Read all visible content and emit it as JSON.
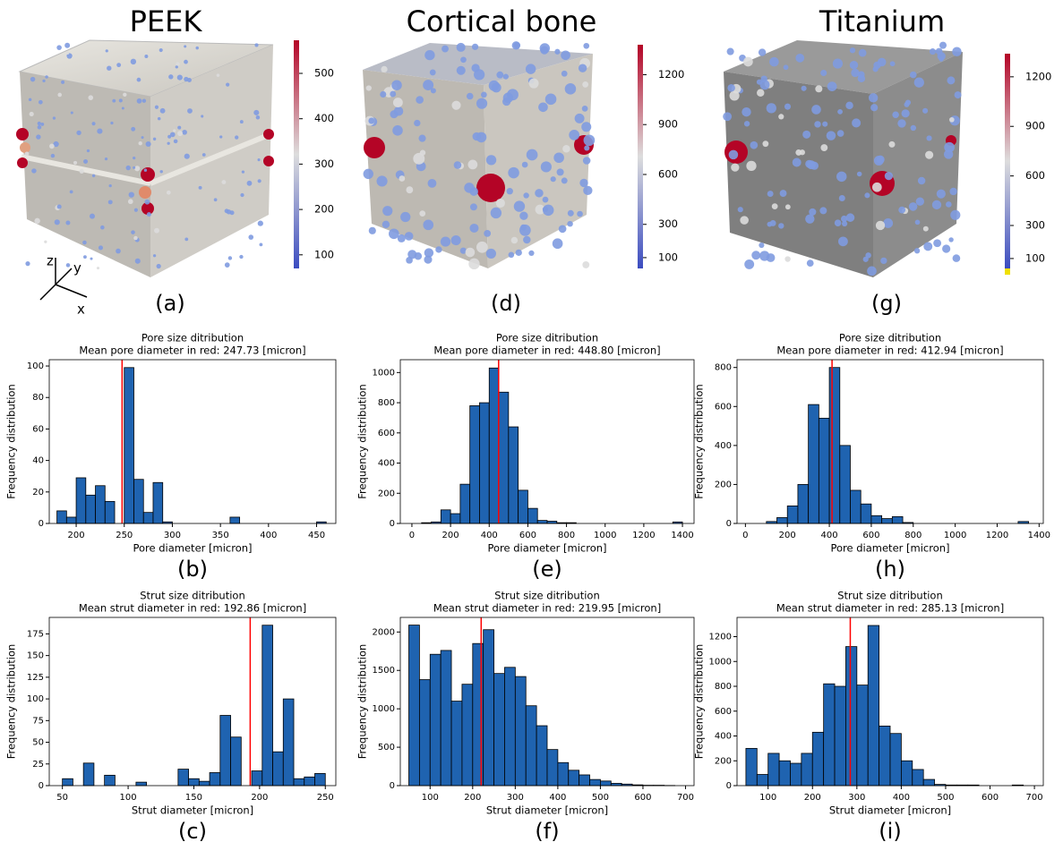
{
  "axis_triad": [
    "z",
    "y",
    "x"
  ],
  "chart_data": [
    {
      "type": "colorbar",
      "title": "PEEK",
      "panel": "(a)",
      "colormap": [
        "#3b4cc0",
        "#dddddd",
        "#b40426"
      ],
      "ylim": [
        70,
        573
      ],
      "yticks": [
        100,
        200,
        300,
        400,
        500
      ]
    },
    {
      "type": "histogram",
      "title": "Pore size ditribution",
      "subtitle": "Mean pore diameter in red: 247.73 [micron]",
      "panel": "(b)",
      "xlabel": "Pore diameter [micron]",
      "ylabel": "Frequency distribution",
      "bins": [
        180,
        190,
        200,
        210,
        220,
        230,
        240,
        250,
        260,
        270,
        280,
        290,
        300,
        310,
        320,
        330,
        340,
        350,
        360,
        370,
        380,
        390,
        400,
        410,
        420,
        430,
        440,
        450,
        460
      ],
      "values": [
        8,
        4,
        29,
        18,
        24,
        14,
        0,
        99,
        28,
        7,
        26,
        1,
        0,
        0,
        0,
        0,
        0,
        0,
        4,
        0,
        0,
        0,
        0,
        0,
        0,
        0,
        0,
        1
      ],
      "color": "#1f63b0",
      "mean_line": 247.73,
      "mean_color": "#ff0000",
      "xlim": [
        172,
        470
      ],
      "ylim": [
        0,
        104
      ],
      "xticks": [
        200,
        250,
        300,
        350,
        400,
        450
      ],
      "yticks": [
        0,
        20,
        40,
        60,
        80,
        100
      ]
    },
    {
      "type": "histogram",
      "title": "Strut size ditribution",
      "subtitle": "Mean strut diameter in red: 192.86 [micron]",
      "panel": "(c)",
      "xlabel": "Strut diameter [micron]",
      "ylabel": "Frequency distribution",
      "bins": [
        50,
        58,
        66,
        74,
        82,
        90,
        98,
        106,
        114,
        122,
        130,
        138,
        146,
        154,
        162,
        170,
        178,
        186,
        194,
        202,
        210,
        218,
        226,
        234,
        242,
        250
      ],
      "values": [
        8,
        0,
        26,
        0,
        12,
        0,
        0,
        4,
        0,
        0,
        0,
        19,
        8,
        5,
        15,
        81,
        56,
        0,
        17,
        185,
        39,
        100,
        8,
        10,
        14
      ],
      "color": "#1f63b0",
      "mean_line": 192.86,
      "mean_color": "#ff0000",
      "xlim": [
        40,
        258
      ],
      "ylim": [
        0,
        194
      ],
      "xticks": [
        50,
        100,
        150,
        200,
        250
      ],
      "yticks": [
        0,
        25,
        50,
        75,
        100,
        125,
        150,
        175
      ]
    },
    {
      "type": "colorbar",
      "title": "Cortical bone",
      "panel": "(d)",
      "colormap": [
        "#3b4cc0",
        "#dddddd",
        "#b40426"
      ],
      "ylim": [
        35,
        1380
      ],
      "yticks": [
        100,
        300,
        600,
        900,
        1200
      ]
    },
    {
      "type": "histogram",
      "title": "Pore size ditribution",
      "subtitle": "Mean pore diameter in red: 448.80 [micron]",
      "panel": "(e)",
      "xlabel": "Pore diameter [micron]",
      "ylabel": "Frequency distribution",
      "bins": [
        50,
        100,
        150,
        200,
        250,
        300,
        350,
        400,
        450,
        500,
        550,
        600,
        650,
        700,
        750,
        800,
        850,
        900,
        950,
        1000,
        1050,
        1100,
        1150,
        1200,
        1250,
        1300,
        1350,
        1400
      ],
      "values": [
        5,
        10,
        90,
        65,
        260,
        780,
        800,
        1030,
        870,
        640,
        220,
        100,
        20,
        15,
        5,
        5,
        0,
        0,
        0,
        0,
        0,
        0,
        0,
        0,
        0,
        0,
        10
      ],
      "color": "#1f63b0",
      "mean_line": 448.8,
      "mean_color": "#ff0000",
      "xlim": [
        -60,
        1460
      ],
      "ylim": [
        0,
        1085
      ],
      "xticks": [
        0,
        200,
        400,
        600,
        800,
        1000,
        1200,
        1400
      ],
      "yticks": [
        0,
        200,
        400,
        600,
        800,
        1000
      ]
    },
    {
      "type": "histogram",
      "title": "Strut size ditribution",
      "subtitle": "Mean strut diameter in red: 219.95 [micron]",
      "panel": "(f)",
      "xlabel": "Strut diameter [micron]",
      "ylabel": "Frequency distribution",
      "bins": [
        50,
        75,
        100,
        125,
        150,
        175,
        200,
        225,
        250,
        275,
        300,
        325,
        350,
        375,
        400,
        425,
        450,
        475,
        500,
        525,
        550,
        575,
        600,
        625,
        650,
        675
      ],
      "values": [
        2090,
        1380,
        1710,
        1760,
        1100,
        1320,
        1850,
        2030,
        1460,
        1540,
        1420,
        1040,
        780,
        470,
        300,
        200,
        140,
        80,
        60,
        30,
        20,
        10,
        5,
        5,
        2
      ],
      "color": "#1f63b0",
      "mean_line": 219.95,
      "mean_color": "#ff0000",
      "xlim": [
        30,
        720
      ],
      "ylim": [
        0,
        2190
      ],
      "xticks": [
        100,
        200,
        300,
        400,
        500,
        600,
        700
      ],
      "yticks": [
        0,
        500,
        1000,
        1500,
        2000
      ]
    },
    {
      "type": "colorbar",
      "title": "Titanium",
      "panel": "(g)",
      "colormap": [
        "#3b4cc0",
        "#dddddd",
        "#b40426"
      ],
      "ylim": [
        40,
        1340
      ],
      "yticks": [
        100,
        300,
        600,
        900,
        1200
      ]
    },
    {
      "type": "histogram",
      "title": "Pore size ditribution",
      "subtitle": "Mean pore diameter in red: 412.94 [micron]",
      "panel": "(h)",
      "xlabel": "Pore diameter [micron]",
      "ylabel": "Frequency distribution",
      "bins": [
        100,
        150,
        200,
        250,
        300,
        350,
        400,
        450,
        500,
        550,
        600,
        650,
        700,
        750,
        800,
        850,
        900,
        950,
        1000,
        1050,
        1100,
        1150,
        1200,
        1250,
        1300,
        1350
      ],
      "values": [
        10,
        30,
        90,
        200,
        610,
        540,
        800,
        400,
        170,
        100,
        40,
        25,
        35,
        5,
        0,
        0,
        0,
        0,
        0,
        0,
        0,
        0,
        0,
        0,
        10
      ],
      "color": "#1f63b0",
      "mean_line": 412.94,
      "mean_color": "#ff0000",
      "xlim": [
        -40,
        1420
      ],
      "ylim": [
        0,
        840
      ],
      "xticks": [
        0,
        200,
        400,
        600,
        800,
        1000,
        1200,
        1400
      ],
      "yticks": [
        0,
        200,
        400,
        600,
        800
      ]
    },
    {
      "type": "histogram",
      "title": "Strut size ditribution",
      "subtitle": "Mean strut diameter in red: 285.13 [micron]",
      "panel": "(i)",
      "xlabel": "Strut diameter [micron]",
      "ylabel": "Frequency distribution",
      "bins": [
        50,
        75,
        100,
        125,
        150,
        175,
        200,
        225,
        250,
        275,
        300,
        325,
        350,
        375,
        400,
        425,
        450,
        475,
        500,
        525,
        550,
        575,
        600,
        625,
        650,
        675
      ],
      "values": [
        300,
        90,
        260,
        200,
        180,
        260,
        430,
        820,
        800,
        1120,
        810,
        1290,
        480,
        420,
        200,
        130,
        50,
        10,
        5,
        5,
        5,
        0,
        0,
        0,
        5
      ],
      "color": "#1f63b0",
      "mean_line": 285.13,
      "mean_color": "#ff0000",
      "xlim": [
        30,
        720
      ],
      "ylim": [
        0,
        1355
      ],
      "xticks": [
        100,
        200,
        300,
        400,
        500,
        600,
        700
      ],
      "yticks": [
        0,
        200,
        400,
        600,
        800,
        1000,
        1200
      ]
    }
  ]
}
